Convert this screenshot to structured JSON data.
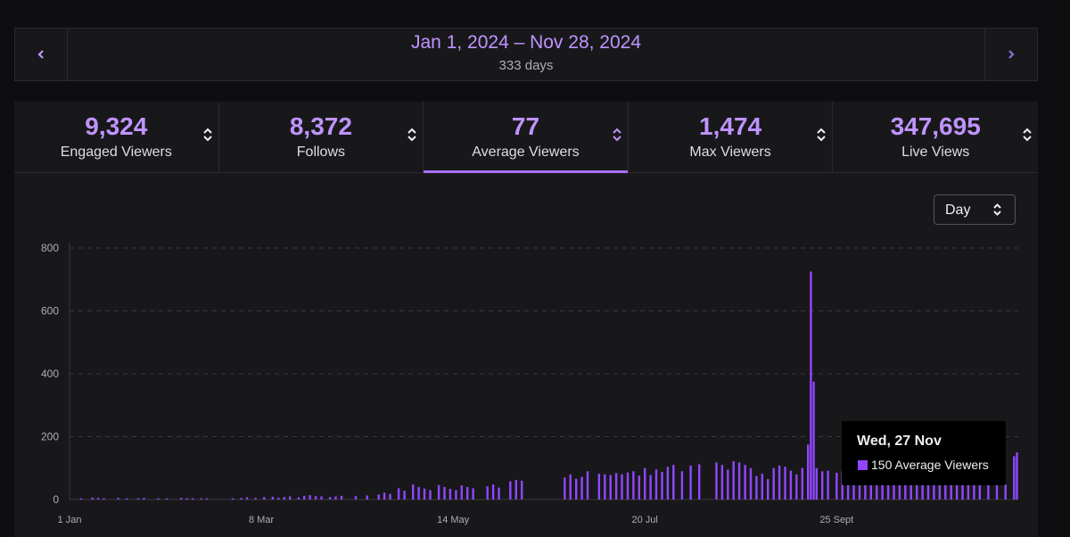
{
  "date_range": {
    "label": "Jan 1, 2024 – Nov 28, 2024",
    "days": "333 days"
  },
  "nav": {
    "prev_icon": "chevron-left-icon",
    "next_icon": "chevron-right-icon"
  },
  "stats": [
    {
      "value": "9,324",
      "label": "Engaged Viewers",
      "active": false
    },
    {
      "value": "8,372",
      "label": "Follows",
      "active": false
    },
    {
      "value": "77",
      "label": "Average Viewers",
      "active": true
    },
    {
      "value": "1,474",
      "label": "Max Viewers",
      "active": false
    },
    {
      "value": "347,695",
      "label": "Live Views",
      "active": false
    }
  ],
  "interval_select": {
    "value": "Day"
  },
  "tooltip": {
    "date": "Wed, 27 Nov",
    "value": "150",
    "label": "Average Viewers"
  },
  "colors": {
    "accent": "#bf94ff",
    "bar": "#9147ff",
    "background": "#18181b"
  },
  "chart_data": {
    "type": "bar",
    "series": [
      {
        "name": "Average Viewers"
      }
    ],
    "ylim": [
      0,
      800
    ],
    "y_ticks": [
      0,
      200,
      400,
      600,
      800
    ],
    "x_tick_labels": [
      "1 Jan",
      "8 Mar",
      "14 May",
      "20 Jul",
      "25 Sept"
    ],
    "grid": true,
    "bars": [
      {
        "x": "2024-01-05",
        "y": 4
      },
      {
        "x": "2024-01-09",
        "y": 6
      },
      {
        "x": "2024-01-11",
        "y": 5
      },
      {
        "x": "2024-01-13",
        "y": 4
      },
      {
        "x": "2024-01-18",
        "y": 5
      },
      {
        "x": "2024-01-21",
        "y": 4
      },
      {
        "x": "2024-01-25",
        "y": 4
      },
      {
        "x": "2024-01-27",
        "y": 5
      },
      {
        "x": "2024-02-01",
        "y": 4
      },
      {
        "x": "2024-02-04",
        "y": 4
      },
      {
        "x": "2024-02-09",
        "y": 5
      },
      {
        "x": "2024-02-11",
        "y": 4
      },
      {
        "x": "2024-02-13",
        "y": 4
      },
      {
        "x": "2024-02-16",
        "y": 4
      },
      {
        "x": "2024-02-18",
        "y": 4
      },
      {
        "x": "2024-02-27",
        "y": 4
      },
      {
        "x": "2024-03-01",
        "y": 5
      },
      {
        "x": "2024-03-03",
        "y": 7
      },
      {
        "x": "2024-03-06",
        "y": 5
      },
      {
        "x": "2024-03-09",
        "y": 8
      },
      {
        "x": "2024-03-12",
        "y": 9
      },
      {
        "x": "2024-03-14",
        "y": 6
      },
      {
        "x": "2024-03-16",
        "y": 8
      },
      {
        "x": "2024-03-18",
        "y": 10
      },
      {
        "x": "2024-03-21",
        "y": 7
      },
      {
        "x": "2024-03-23",
        "y": 12
      },
      {
        "x": "2024-03-25",
        "y": 14
      },
      {
        "x": "2024-03-27",
        "y": 11
      },
      {
        "x": "2024-03-29",
        "y": 10
      },
      {
        "x": "2024-04-01",
        "y": 8
      },
      {
        "x": "2024-04-03",
        "y": 10
      },
      {
        "x": "2024-04-05",
        "y": 12
      },
      {
        "x": "2024-04-10",
        "y": 11
      },
      {
        "x": "2024-04-14",
        "y": 13
      },
      {
        "x": "2024-04-18",
        "y": 16
      },
      {
        "x": "2024-04-20",
        "y": 22
      },
      {
        "x": "2024-04-22",
        "y": 18
      },
      {
        "x": "2024-04-25",
        "y": 36
      },
      {
        "x": "2024-04-27",
        "y": 28
      },
      {
        "x": "2024-04-30",
        "y": 48
      },
      {
        "x": "2024-05-02",
        "y": 40
      },
      {
        "x": "2024-05-04",
        "y": 35
      },
      {
        "x": "2024-05-06",
        "y": 30
      },
      {
        "x": "2024-05-09",
        "y": 46
      },
      {
        "x": "2024-05-11",
        "y": 40
      },
      {
        "x": "2024-05-13",
        "y": 34
      },
      {
        "x": "2024-05-15",
        "y": 30
      },
      {
        "x": "2024-05-17",
        "y": 45
      },
      {
        "x": "2024-05-19",
        "y": 40
      },
      {
        "x": "2024-05-21",
        "y": 36
      },
      {
        "x": "2024-05-26",
        "y": 42
      },
      {
        "x": "2024-05-28",
        "y": 48
      },
      {
        "x": "2024-05-30",
        "y": 38
      },
      {
        "x": "2024-06-03",
        "y": 58
      },
      {
        "x": "2024-06-05",
        "y": 62
      },
      {
        "x": "2024-06-07",
        "y": 60
      },
      {
        "x": "2024-06-22",
        "y": 70
      },
      {
        "x": "2024-06-24",
        "y": 80
      },
      {
        "x": "2024-06-26",
        "y": 66
      },
      {
        "x": "2024-06-28",
        "y": 72
      },
      {
        "x": "2024-06-30",
        "y": 90
      },
      {
        "x": "2024-07-04",
        "y": 82
      },
      {
        "x": "2024-07-06",
        "y": 80
      },
      {
        "x": "2024-07-08",
        "y": 78
      },
      {
        "x": "2024-07-10",
        "y": 84
      },
      {
        "x": "2024-07-12",
        "y": 80
      },
      {
        "x": "2024-07-14",
        "y": 86
      },
      {
        "x": "2024-07-16",
        "y": 90
      },
      {
        "x": "2024-07-18",
        "y": 76
      },
      {
        "x": "2024-07-20",
        "y": 100
      },
      {
        "x": "2024-07-22",
        "y": 78
      },
      {
        "x": "2024-07-24",
        "y": 96
      },
      {
        "x": "2024-07-26",
        "y": 88
      },
      {
        "x": "2024-07-28",
        "y": 104
      },
      {
        "x": "2024-07-30",
        "y": 110
      },
      {
        "x": "2024-08-02",
        "y": 90
      },
      {
        "x": "2024-08-05",
        "y": 108
      },
      {
        "x": "2024-08-08",
        "y": 112
      },
      {
        "x": "2024-08-14",
        "y": 118
      },
      {
        "x": "2024-08-16",
        "y": 110
      },
      {
        "x": "2024-08-18",
        "y": 95
      },
      {
        "x": "2024-08-20",
        "y": 122
      },
      {
        "x": "2024-08-22",
        "y": 118
      },
      {
        "x": "2024-08-24",
        "y": 110
      },
      {
        "x": "2024-08-26",
        "y": 100
      },
      {
        "x": "2024-08-28",
        "y": 75
      },
      {
        "x": "2024-08-30",
        "y": 82
      },
      {
        "x": "2024-09-01",
        "y": 65
      },
      {
        "x": "2024-09-03",
        "y": 100
      },
      {
        "x": "2024-09-05",
        "y": 108
      },
      {
        "x": "2024-09-07",
        "y": 104
      },
      {
        "x": "2024-09-09",
        "y": 92
      },
      {
        "x": "2024-09-11",
        "y": 80
      },
      {
        "x": "2024-09-13",
        "y": 100
      },
      {
        "x": "2024-09-15",
        "y": 175
      },
      {
        "x": "2024-09-16",
        "y": 725
      },
      {
        "x": "2024-09-17",
        "y": 375
      },
      {
        "x": "2024-09-18",
        "y": 100
      },
      {
        "x": "2024-09-20",
        "y": 90
      },
      {
        "x": "2024-09-22",
        "y": 92
      },
      {
        "x": "2024-09-25",
        "y": 85
      },
      {
        "x": "2024-09-27",
        "y": 90
      },
      {
        "x": "2024-09-29",
        "y": 100
      },
      {
        "x": "2024-10-01",
        "y": 102
      },
      {
        "x": "2024-10-03",
        "y": 165
      },
      {
        "x": "2024-10-05",
        "y": 95
      },
      {
        "x": "2024-10-07",
        "y": 98
      },
      {
        "x": "2024-10-09",
        "y": 90
      },
      {
        "x": "2024-10-11",
        "y": 102
      },
      {
        "x": "2024-10-13",
        "y": 68
      },
      {
        "x": "2024-10-15",
        "y": 80
      },
      {
        "x": "2024-10-17",
        "y": 160
      },
      {
        "x": "2024-10-19",
        "y": 88
      },
      {
        "x": "2024-10-21",
        "y": 100
      },
      {
        "x": "2024-10-23",
        "y": 82
      },
      {
        "x": "2024-10-25",
        "y": 88
      },
      {
        "x": "2024-10-27",
        "y": 95
      },
      {
        "x": "2024-10-29",
        "y": 92
      },
      {
        "x": "2024-10-31",
        "y": 90
      },
      {
        "x": "2024-11-02",
        "y": 85
      },
      {
        "x": "2024-11-04",
        "y": 88
      },
      {
        "x": "2024-11-06",
        "y": 92
      },
      {
        "x": "2024-11-08",
        "y": 84
      },
      {
        "x": "2024-11-10",
        "y": 90
      },
      {
        "x": "2024-11-12",
        "y": 80
      },
      {
        "x": "2024-11-14",
        "y": 95
      },
      {
        "x": "2024-11-17",
        "y": 85
      },
      {
        "x": "2024-11-20",
        "y": 90
      },
      {
        "x": "2024-11-23",
        "y": 48
      },
      {
        "x": "2024-11-26",
        "y": 138
      },
      {
        "x": "2024-11-27",
        "y": 150
      }
    ]
  }
}
